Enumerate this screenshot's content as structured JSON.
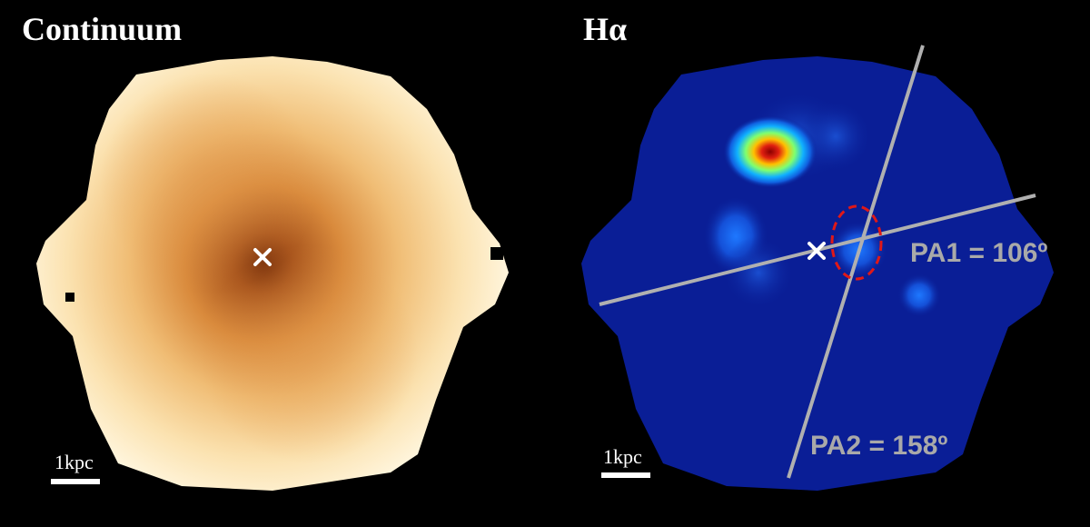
{
  "panels": {
    "continuum": {
      "title": "Continuum",
      "scale_label": "1kpc"
    },
    "halpha": {
      "title": "Hα",
      "scale_label": "1kpc",
      "pa1_label": "PA1 = 106º",
      "pa2_label": "PA2 = 158º"
    }
  },
  "colors": {
    "background": "#000000",
    "continuum_light": "#fdf0cf",
    "continuum_mid": "#ecad62",
    "continuum_dark": "#8a3a0c",
    "halpha_background": "#0a1e96",
    "pa_line": "#b0b0b0",
    "aperture": "#e01818",
    "marker": "#ffffff"
  }
}
